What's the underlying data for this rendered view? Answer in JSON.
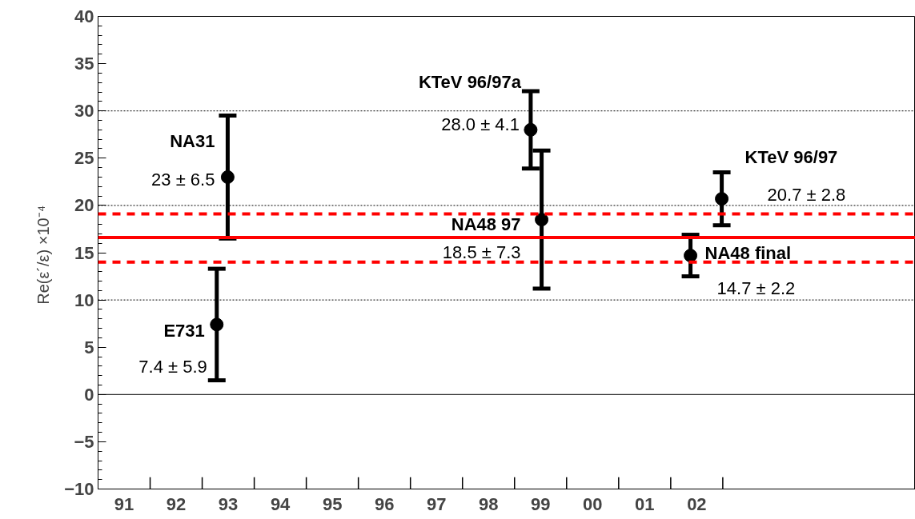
{
  "chart_data": {
    "type": "scatter",
    "ylabel": "Re(ε´/ε)  ×10⁻⁴",
    "x": [
      1992.78,
      1992.99,
      1998.81,
      1999.02,
      2001.88,
      2002.48
    ],
    "values": [
      7.4,
      23,
      28.0,
      18.5,
      14.7,
      20.7
    ],
    "errors": [
      5.9,
      6.5,
      4.1,
      7.3,
      2.2,
      2.8
    ],
    "color": "#000000",
    "marker": "circle",
    "xlim": [
      1990.5,
      2006.2
    ],
    "xticks": [
      {
        "value": 1991,
        "label": "91"
      },
      {
        "value": 1992,
        "label": "92"
      },
      {
        "value": 1993,
        "label": "93"
      },
      {
        "value": 1994,
        "label": "94"
      },
      {
        "value": 1995,
        "label": "95"
      },
      {
        "value": 1996,
        "label": "96"
      },
      {
        "value": 1997,
        "label": "97"
      },
      {
        "value": 1998,
        "label": "98"
      },
      {
        "value": 1999,
        "label": "99"
      },
      {
        "value": 2000,
        "label": "00"
      },
      {
        "value": 2001,
        "label": "01"
      },
      {
        "value": 2002,
        "label": "02"
      },
      {
        "value": 1991.5,
        "label": null
      },
      {
        "value": 1992.5,
        "label": null
      },
      {
        "value": 1993.5,
        "label": null
      },
      {
        "value": 1994.5,
        "label": null
      },
      {
        "value": 1995.5,
        "label": null
      },
      {
        "value": 1996.5,
        "label": null
      },
      {
        "value": 1997.5,
        "label": null
      },
      {
        "value": 1998.5,
        "label": null
      },
      {
        "value": 1999.5,
        "label": null
      },
      {
        "value": 2000.5,
        "label": null
      },
      {
        "value": 2001.5,
        "label": null
      },
      {
        "value": 2002.5,
        "label": null
      }
    ],
    "ylim": [
      -10,
      40
    ],
    "yticks": [
      -10,
      -5,
      0,
      5,
      10,
      15,
      20,
      25,
      30,
      35,
      40
    ],
    "grid": false,
    "ref_lines": [
      {
        "axis": "y",
        "value": 0,
        "color": "#000000",
        "line_style": "solid"
      },
      {
        "axis": "y",
        "value": 10,
        "color": "#000000",
        "line_style": "dotted"
      },
      {
        "axis": "y",
        "value": 20,
        "color": "#000000",
        "line_style": "dotted"
      },
      {
        "axis": "y",
        "value": 30,
        "color": "#000000",
        "line_style": "dotted"
      },
      {
        "axis": "y",
        "value": 16.6,
        "color": "#ff0000",
        "line_style": "solid"
      },
      {
        "axis": "y",
        "value": 19.1,
        "color": "#ff0000",
        "line_style": "dashed"
      },
      {
        "axis": "y",
        "value": 14.0,
        "color": "#ff0000",
        "line_style": "dashed"
      }
    ],
    "annotations": [
      {
        "text": "E731",
        "x": 1992.78,
        "y": 7.4
      },
      {
        "text": "7.4 ± 5.9",
        "x": 1992.78,
        "y": 7.4
      },
      {
        "text": "NA31",
        "x": 1992.99,
        "y": 23
      },
      {
        "text": "23 ± 6.5",
        "x": 1992.99,
        "y": 23
      },
      {
        "text": "KTeV 96/97a",
        "x": 1998.81,
        "y": 28.0
      },
      {
        "text": "28.0 ± 4.1",
        "x": 1998.81,
        "y": 28.0
      },
      {
        "text": "NA48 97",
        "x": 1999.02,
        "y": 18.5
      },
      {
        "text": "18.5 ± 7.3",
        "x": 1999.02,
        "y": 18.5
      },
      {
        "text": "NA48 final",
        "x": 2001.88,
        "y": 14.7
      },
      {
        "text": "14.7 ± 2.2",
        "x": 2001.88,
        "y": 14.7
      },
      {
        "text": "KTeV 96/97",
        "x": 2002.48,
        "y": 20.7
      },
      {
        "text": "20.7 ± 2.8",
        "x": 2002.48,
        "y": 20.7
      }
    ]
  }
}
